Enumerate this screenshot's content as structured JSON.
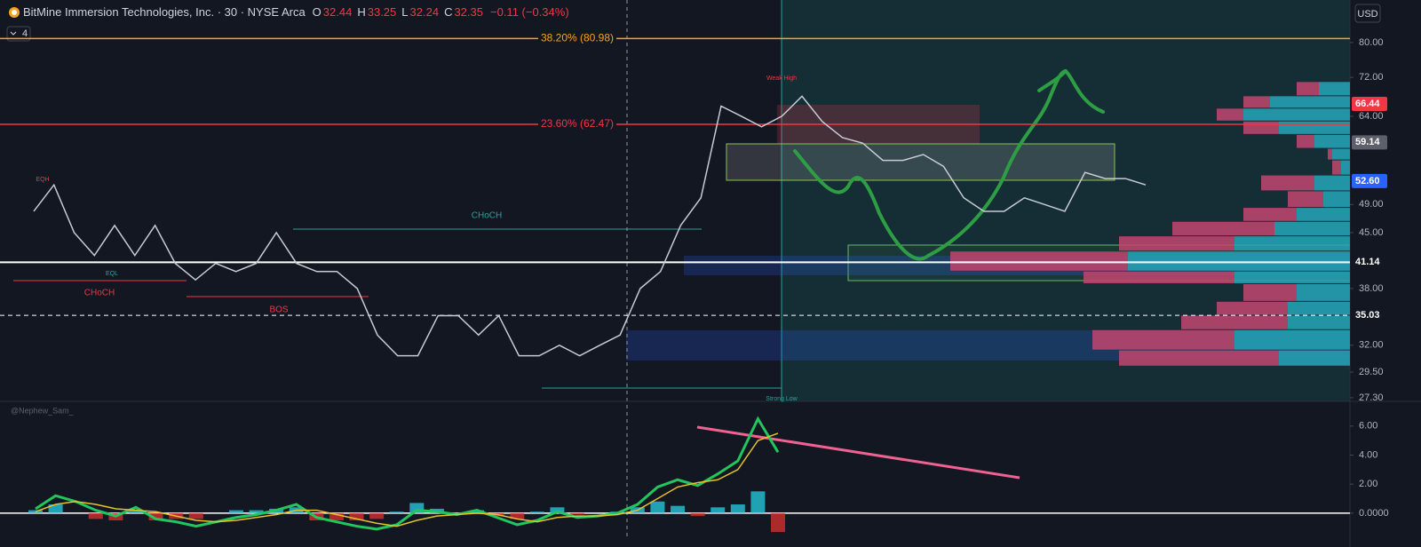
{
  "header": {
    "title": "BitMine Immersion Technologies, Inc. · 30 · NYSE Arca",
    "quote": [
      {
        "label": "O",
        "value": "32.44"
      },
      {
        "label": "H",
        "value": "33.25"
      },
      {
        "label": "L",
        "value": "32.24"
      },
      {
        "label": "C",
        "value": "32.35"
      }
    ],
    "change": "−0.11 (−0.34%)",
    "indicators": "4",
    "currency": "USD"
  },
  "chart_data": [
    {
      "type": "line",
      "log": true,
      "ylim": [
        27,
        91
      ],
      "yticks": [
        {
          "value": 80,
          "label": "80.00"
        },
        {
          "value": 72,
          "label": "72.00"
        },
        {
          "value": 64,
          "label": "64.00"
        },
        {
          "value": 49,
          "label": "49.00"
        },
        {
          "value": 45,
          "label": "45.00"
        },
        {
          "value": 38,
          "label": "38.00"
        },
        {
          "value": 32,
          "label": "32.00"
        },
        {
          "value": 29.5,
          "label": "29.50"
        },
        {
          "value": 27.3,
          "label": "27.30"
        }
      ],
      "series": [
        {
          "color": "#c8cbd4",
          "values": [
            48,
            52,
            45,
            42,
            46,
            42,
            46,
            41,
            39,
            41,
            40,
            41,
            45,
            41,
            40,
            40,
            38,
            33,
            31,
            31,
            35,
            35,
            33,
            35,
            31,
            31,
            32,
            31,
            32,
            33,
            38,
            40,
            46,
            50,
            66,
            64,
            62,
            64,
            68,
            63,
            60,
            59,
            56,
            56,
            57,
            55,
            50,
            48,
            48,
            50,
            49,
            48,
            54,
            53,
            53,
            52
          ]
        }
      ],
      "levels": [
        {
          "value": 80.98,
          "label": "38.20% (80.98)",
          "color": "#f7a21b"
        },
        {
          "value": 62.47,
          "label": "23.60% (62.47)",
          "color": "#f23645"
        }
      ],
      "price_labels": [
        {
          "value": 66.44,
          "label": "66.44",
          "color": "#f23645"
        },
        {
          "value": 59.14,
          "label": "59.14",
          "color": "#5d606b"
        },
        {
          "value": 52.6,
          "label": "52.60",
          "color": "#2962ff"
        },
        {
          "value": 41.14,
          "label": "41.14",
          "color": "#ffffff"
        },
        {
          "value": 35.03,
          "label": "35.03",
          "color": "#ffffff"
        }
      ],
      "volume_profile": {
        "bins": [
          71,
          68,
          65.5,
          63,
          60.5,
          58,
          56,
          53.5,
          51,
          48.5,
          46.5,
          44.5,
          42.5,
          40,
          38.5,
          36.5,
          35,
          33.5,
          31.5,
          30
        ],
        "sell": [
          25,
          30,
          30,
          40,
          20,
          5,
          10,
          60,
          40,
          60,
          115,
          130,
          200,
          170,
          60,
          80,
          120,
          160,
          180
        ],
        "buy": [
          35,
          90,
          120,
          80,
          40,
          20,
          10,
          40,
          30,
          60,
          85,
          130,
          250,
          130,
          60,
          70,
          70,
          130,
          80
        ],
        "sell_color": "#c2456f",
        "buy_color": "#26a6b8"
      },
      "annotations": [
        "CHoCH",
        "CHoCH",
        "BOS",
        "EQH",
        "EQL",
        "Weak High",
        "Strong Low",
        "@Nephew_Sam_"
      ]
    },
    {
      "type": "macd",
      "ylim": [
        -1.6,
        7.7
      ],
      "yticks": [
        {
          "value": 6,
          "label": "6.00"
        },
        {
          "value": 4,
          "label": "4.00"
        },
        {
          "value": 2,
          "label": "2.00"
        },
        {
          "value": 0,
          "label": "0.0000"
        }
      ],
      "series": [
        {
          "color": "#22c55e",
          "values": [
            0.3,
            1.2,
            0.8,
            0.2,
            -0.2,
            0.4,
            -0.4,
            -0.6,
            -0.9,
            -0.6,
            -0.3,
            -0.1,
            0.2,
            0.6,
            -0.3,
            -0.6,
            -0.9,
            -1.1,
            -0.8,
            0.2,
            0.1,
            -0.1,
            0.2,
            -0.3,
            -0.8,
            -0.5,
            0.1,
            -0.3,
            -0.2,
            0,
            0.6,
            1.8,
            2.3,
            1.9,
            2.7,
            3.6,
            6.5,
            4.2
          ]
        },
        {
          "color": "#e6c229",
          "values": [
            0.1,
            0.6,
            0.8,
            0.6,
            0.3,
            0.2,
            0.1,
            -0.2,
            -0.5,
            -0.6,
            -0.5,
            -0.3,
            -0.1,
            0.2,
            0.2,
            -0.1,
            -0.4,
            -0.7,
            -0.9,
            -0.5,
            -0.2,
            -0.1,
            0,
            -0.1,
            -0.4,
            -0.6,
            -0.3,
            -0.2,
            -0.2,
            -0.1,
            0.2,
            1,
            1.8,
            2.1,
            2.3,
            3,
            5,
            5.5
          ]
        }
      ],
      "histogram": {
        "values": [
          0.2,
          0.6,
          0,
          -0.4,
          -0.5,
          0.2,
          -0.5,
          -0.4,
          -0.4,
          0,
          0.2,
          0.2,
          0.3,
          0.4,
          -0.5,
          -0.5,
          -0.5,
          -0.4,
          0.1,
          0.7,
          0.3,
          0,
          0.2,
          -0.2,
          -0.4,
          0.1,
          0.4,
          -0.1,
          0,
          0.1,
          0.4,
          0.8,
          0.5,
          -0.2,
          0.4,
          0.6,
          1.5,
          -1.3
        ],
        "up_color": "#26c6da",
        "down_color": "#d32f2f"
      }
    }
  ]
}
